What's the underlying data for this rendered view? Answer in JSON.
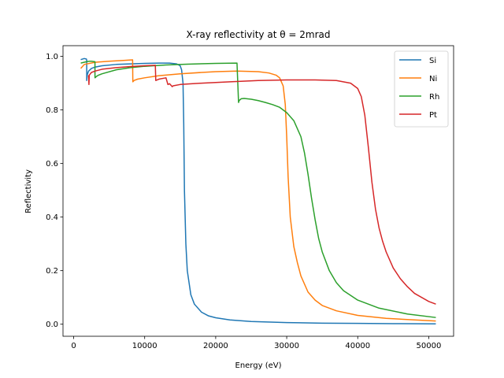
{
  "chart_data": {
    "type": "line",
    "title": "X-ray reflectivity at θ = 2mrad",
    "xlabel": "Energy (eV)",
    "ylabel": "Reflectivity",
    "xlim": [
      -1500,
      53500
    ],
    "ylim": [
      -0.045,
      1.04
    ],
    "xticks": [
      0,
      10000,
      20000,
      30000,
      40000,
      50000
    ],
    "xtick_labels": [
      "0",
      "10000",
      "20000",
      "30000",
      "40000",
      "50000"
    ],
    "yticks": [
      0.0,
      0.2,
      0.4,
      0.6,
      0.8,
      1.0
    ],
    "ytick_labels": [
      "0.0",
      "0.2",
      "0.4",
      "0.6",
      "0.8",
      "1.0"
    ],
    "grid": false,
    "legend_position": "top-right",
    "series": [
      {
        "name": "Si",
        "color": "#1f77b4",
        "x": [
          1000,
          1500,
          1800,
          1839,
          1840,
          1900,
          2100,
          2500,
          3000,
          4000,
          6000,
          8000,
          10000,
          12000,
          13500,
          14500,
          15000,
          15200,
          15400,
          15500,
          15600,
          15800,
          16000,
          16500,
          17000,
          18000,
          19000,
          20000,
          22000,
          25000,
          30000,
          35000,
          40000,
          45000,
          51000
        ],
        "y": [
          0.988,
          0.992,
          0.99,
          0.985,
          0.91,
          0.93,
          0.945,
          0.955,
          0.96,
          0.965,
          0.97,
          0.972,
          0.974,
          0.975,
          0.975,
          0.972,
          0.965,
          0.95,
          0.9,
          0.75,
          0.5,
          0.3,
          0.2,
          0.11,
          0.075,
          0.045,
          0.031,
          0.024,
          0.016,
          0.01,
          0.006,
          0.004,
          0.003,
          0.002,
          0.0015
        ]
      },
      {
        "name": "Ni",
        "color": "#ff7f0e",
        "x": [
          1000,
          1500,
          3000,
          5000,
          7000,
          8300,
          8333,
          8500,
          9000,
          10000,
          12000,
          15000,
          18000,
          20000,
          23000,
          26000,
          27500,
          28500,
          29000,
          29500,
          29800,
          30000,
          30200,
          30500,
          31000,
          31500,
          32000,
          33000,
          34000,
          35000,
          37000,
          40000,
          44000,
          48000,
          51000
        ],
        "y": [
          0.955,
          0.97,
          0.978,
          0.982,
          0.985,
          0.987,
          0.905,
          0.91,
          0.915,
          0.92,
          0.928,
          0.935,
          0.94,
          0.943,
          0.945,
          0.943,
          0.938,
          0.93,
          0.92,
          0.89,
          0.82,
          0.7,
          0.55,
          0.4,
          0.29,
          0.23,
          0.18,
          0.12,
          0.09,
          0.07,
          0.05,
          0.033,
          0.022,
          0.016,
          0.012
        ]
      },
      {
        "name": "Rh",
        "color": "#2ca02c",
        "x": [
          1000,
          1800,
          2200,
          2500,
          3000,
          3003,
          3200,
          3500,
          4000,
          6000,
          8000,
          10000,
          13000,
          16000,
          20000,
          23000,
          23219,
          23300,
          23600,
          24000,
          25000,
          26000,
          27000,
          28000,
          29000,
          30000,
          31000,
          32000,
          32500,
          33000,
          33500,
          34000,
          34500,
          35000,
          36000,
          37000,
          38000,
          40000,
          43000,
          47000,
          51000
        ],
        "y": [
          0.975,
          0.98,
          0.982,
          0.982,
          0.98,
          0.92,
          0.925,
          0.93,
          0.935,
          0.95,
          0.958,
          0.963,
          0.968,
          0.971,
          0.974,
          0.975,
          0.828,
          0.835,
          0.842,
          0.843,
          0.84,
          0.835,
          0.828,
          0.82,
          0.81,
          0.79,
          0.76,
          0.7,
          0.64,
          0.56,
          0.47,
          0.39,
          0.32,
          0.27,
          0.2,
          0.155,
          0.125,
          0.09,
          0.06,
          0.038,
          0.025
        ]
      },
      {
        "name": "Pt",
        "color": "#d62728",
        "x": [
          2100,
          2150,
          2200,
          2500,
          3000,
          4000,
          6000,
          8000,
          10000,
          11500,
          11564,
          12000,
          13000,
          13272,
          13500,
          13880,
          14000,
          15000,
          18000,
          22000,
          26000,
          30000,
          34000,
          37000,
          39000,
          40000,
          40500,
          41000,
          41500,
          42000,
          42500,
          43000,
          43500,
          44000,
          45000,
          46000,
          47000,
          48000,
          50000,
          51000
        ],
        "y": [
          0.93,
          0.895,
          0.93,
          0.94,
          0.945,
          0.952,
          0.958,
          0.962,
          0.965,
          0.967,
          0.91,
          0.915,
          0.92,
          0.895,
          0.898,
          0.887,
          0.89,
          0.895,
          0.9,
          0.905,
          0.91,
          0.912,
          0.912,
          0.91,
          0.9,
          0.88,
          0.85,
          0.78,
          0.66,
          0.53,
          0.43,
          0.36,
          0.31,
          0.27,
          0.21,
          0.17,
          0.14,
          0.115,
          0.085,
          0.075
        ]
      }
    ]
  }
}
